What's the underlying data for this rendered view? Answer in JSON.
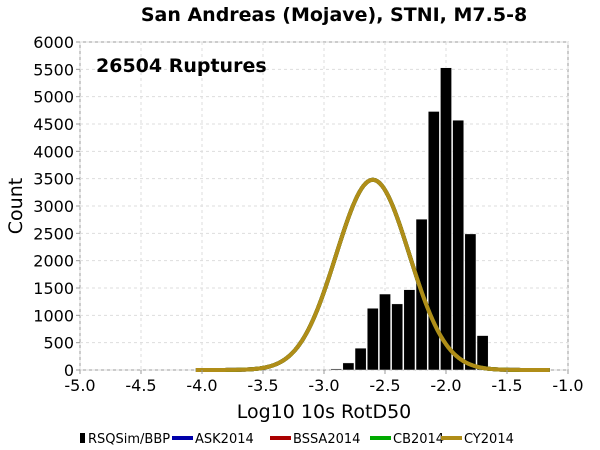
{
  "chart_data": {
    "type": "bar",
    "title": "San Andreas (Mojave), STNI, M7.5-8",
    "annotation": "26504 Ruptures",
    "xlabel": "Log10 10s RotD50",
    "ylabel": "Count",
    "xlim": [
      -5.0,
      -1.0
    ],
    "ylim": [
      0,
      6000
    ],
    "x_ticks": [
      "-5.0",
      "-4.5",
      "-4.0",
      "-3.5",
      "-3.0",
      "-2.5",
      "-2.0",
      "-1.5",
      "-1.0"
    ],
    "y_ticks": [
      "0",
      "500",
      "1000",
      "1500",
      "2000",
      "2500",
      "3000",
      "3500",
      "4000",
      "4500",
      "5000",
      "5500",
      "6000"
    ],
    "grid": true,
    "legend_position": "bottom",
    "histogram": {
      "name": "RSQSim/BBP",
      "color": "#000000",
      "bins": [
        {
          "x0": -2.95,
          "x1": -2.85,
          "count": 20
        },
        {
          "x0": -2.85,
          "x1": -2.75,
          "count": 130
        },
        {
          "x0": -2.75,
          "x1": -2.65,
          "count": 400
        },
        {
          "x0": -2.65,
          "x1": -2.55,
          "count": 1130
        },
        {
          "x0": -2.55,
          "x1": -2.45,
          "count": 1390
        },
        {
          "x0": -2.45,
          "x1": -2.35,
          "count": 1210
        },
        {
          "x0": -2.35,
          "x1": -2.25,
          "count": 1470
        },
        {
          "x0": -2.25,
          "x1": -2.15,
          "count": 2760
        },
        {
          "x0": -2.15,
          "x1": -2.05,
          "count": 4730
        },
        {
          "x0": -2.05,
          "x1": -1.95,
          "count": 5530
        },
        {
          "x0": -1.95,
          "x1": -1.85,
          "count": 4570
        },
        {
          "x0": -1.85,
          "x1": -1.75,
          "count": 2490
        },
        {
          "x0": -1.75,
          "x1": -1.65,
          "count": 630
        }
      ]
    },
    "series": [
      {
        "name": "ASK2014",
        "color": "#0000aa",
        "mean": -2.6,
        "std": 0.3,
        "peak": 3480,
        "x_range": [
          -4.05,
          -1.15
        ]
      },
      {
        "name": "BSSA2014",
        "color": "#aa0000",
        "mean": -2.6,
        "std": 0.3,
        "peak": 3480,
        "x_range": [
          -4.05,
          -1.15
        ]
      },
      {
        "name": "CB2014",
        "color": "#00aa00",
        "mean": -2.6,
        "std": 0.3,
        "peak": 3480,
        "x_range": [
          -4.05,
          -1.15
        ]
      },
      {
        "name": "CY2014",
        "color": "#b08d18",
        "mean": -2.6,
        "std": 0.3,
        "peak": 3480,
        "x_range": [
          -4.05,
          -1.15
        ]
      }
    ]
  }
}
